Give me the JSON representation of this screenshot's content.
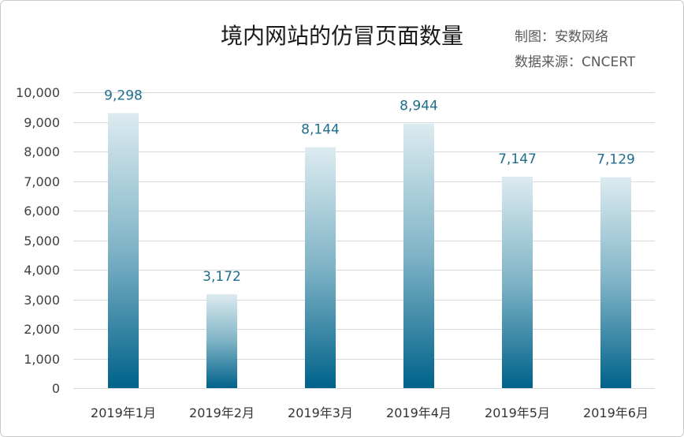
{
  "chart_data": {
    "type": "bar",
    "title": "境内网站的仿冒页面数量",
    "categories": [
      "2019年1月",
      "2019年2月",
      "2019年3月",
      "2019年4月",
      "2019年5月",
      "2019年6月"
    ],
    "values": [
      9298,
      3172,
      8144,
      8944,
      7147,
      7129
    ],
    "data_labels_shown": true,
    "y_ticks": [
      0,
      1000,
      2000,
      3000,
      4000,
      5000,
      6000,
      7000,
      8000,
      9000,
      10000
    ],
    "ylim": [
      0,
      10000
    ],
    "xlabel": "",
    "ylabel": "",
    "grid": true,
    "legend": "none"
  },
  "credits": {
    "author": "制图：安数网络",
    "source": "数据来源：CNCERT"
  },
  "colors": {
    "bar_top": "#dcebf0",
    "bar_mid": "#7fb3c6",
    "bar_bottom": "#00628a",
    "data_label": "#1d6e8c",
    "grid": "#d9d9d9",
    "axis_text": "#404040",
    "category_text": "#333333",
    "title": "#1a1a1a",
    "credit_text": "#595959",
    "frame": "#c9c9c9"
  }
}
